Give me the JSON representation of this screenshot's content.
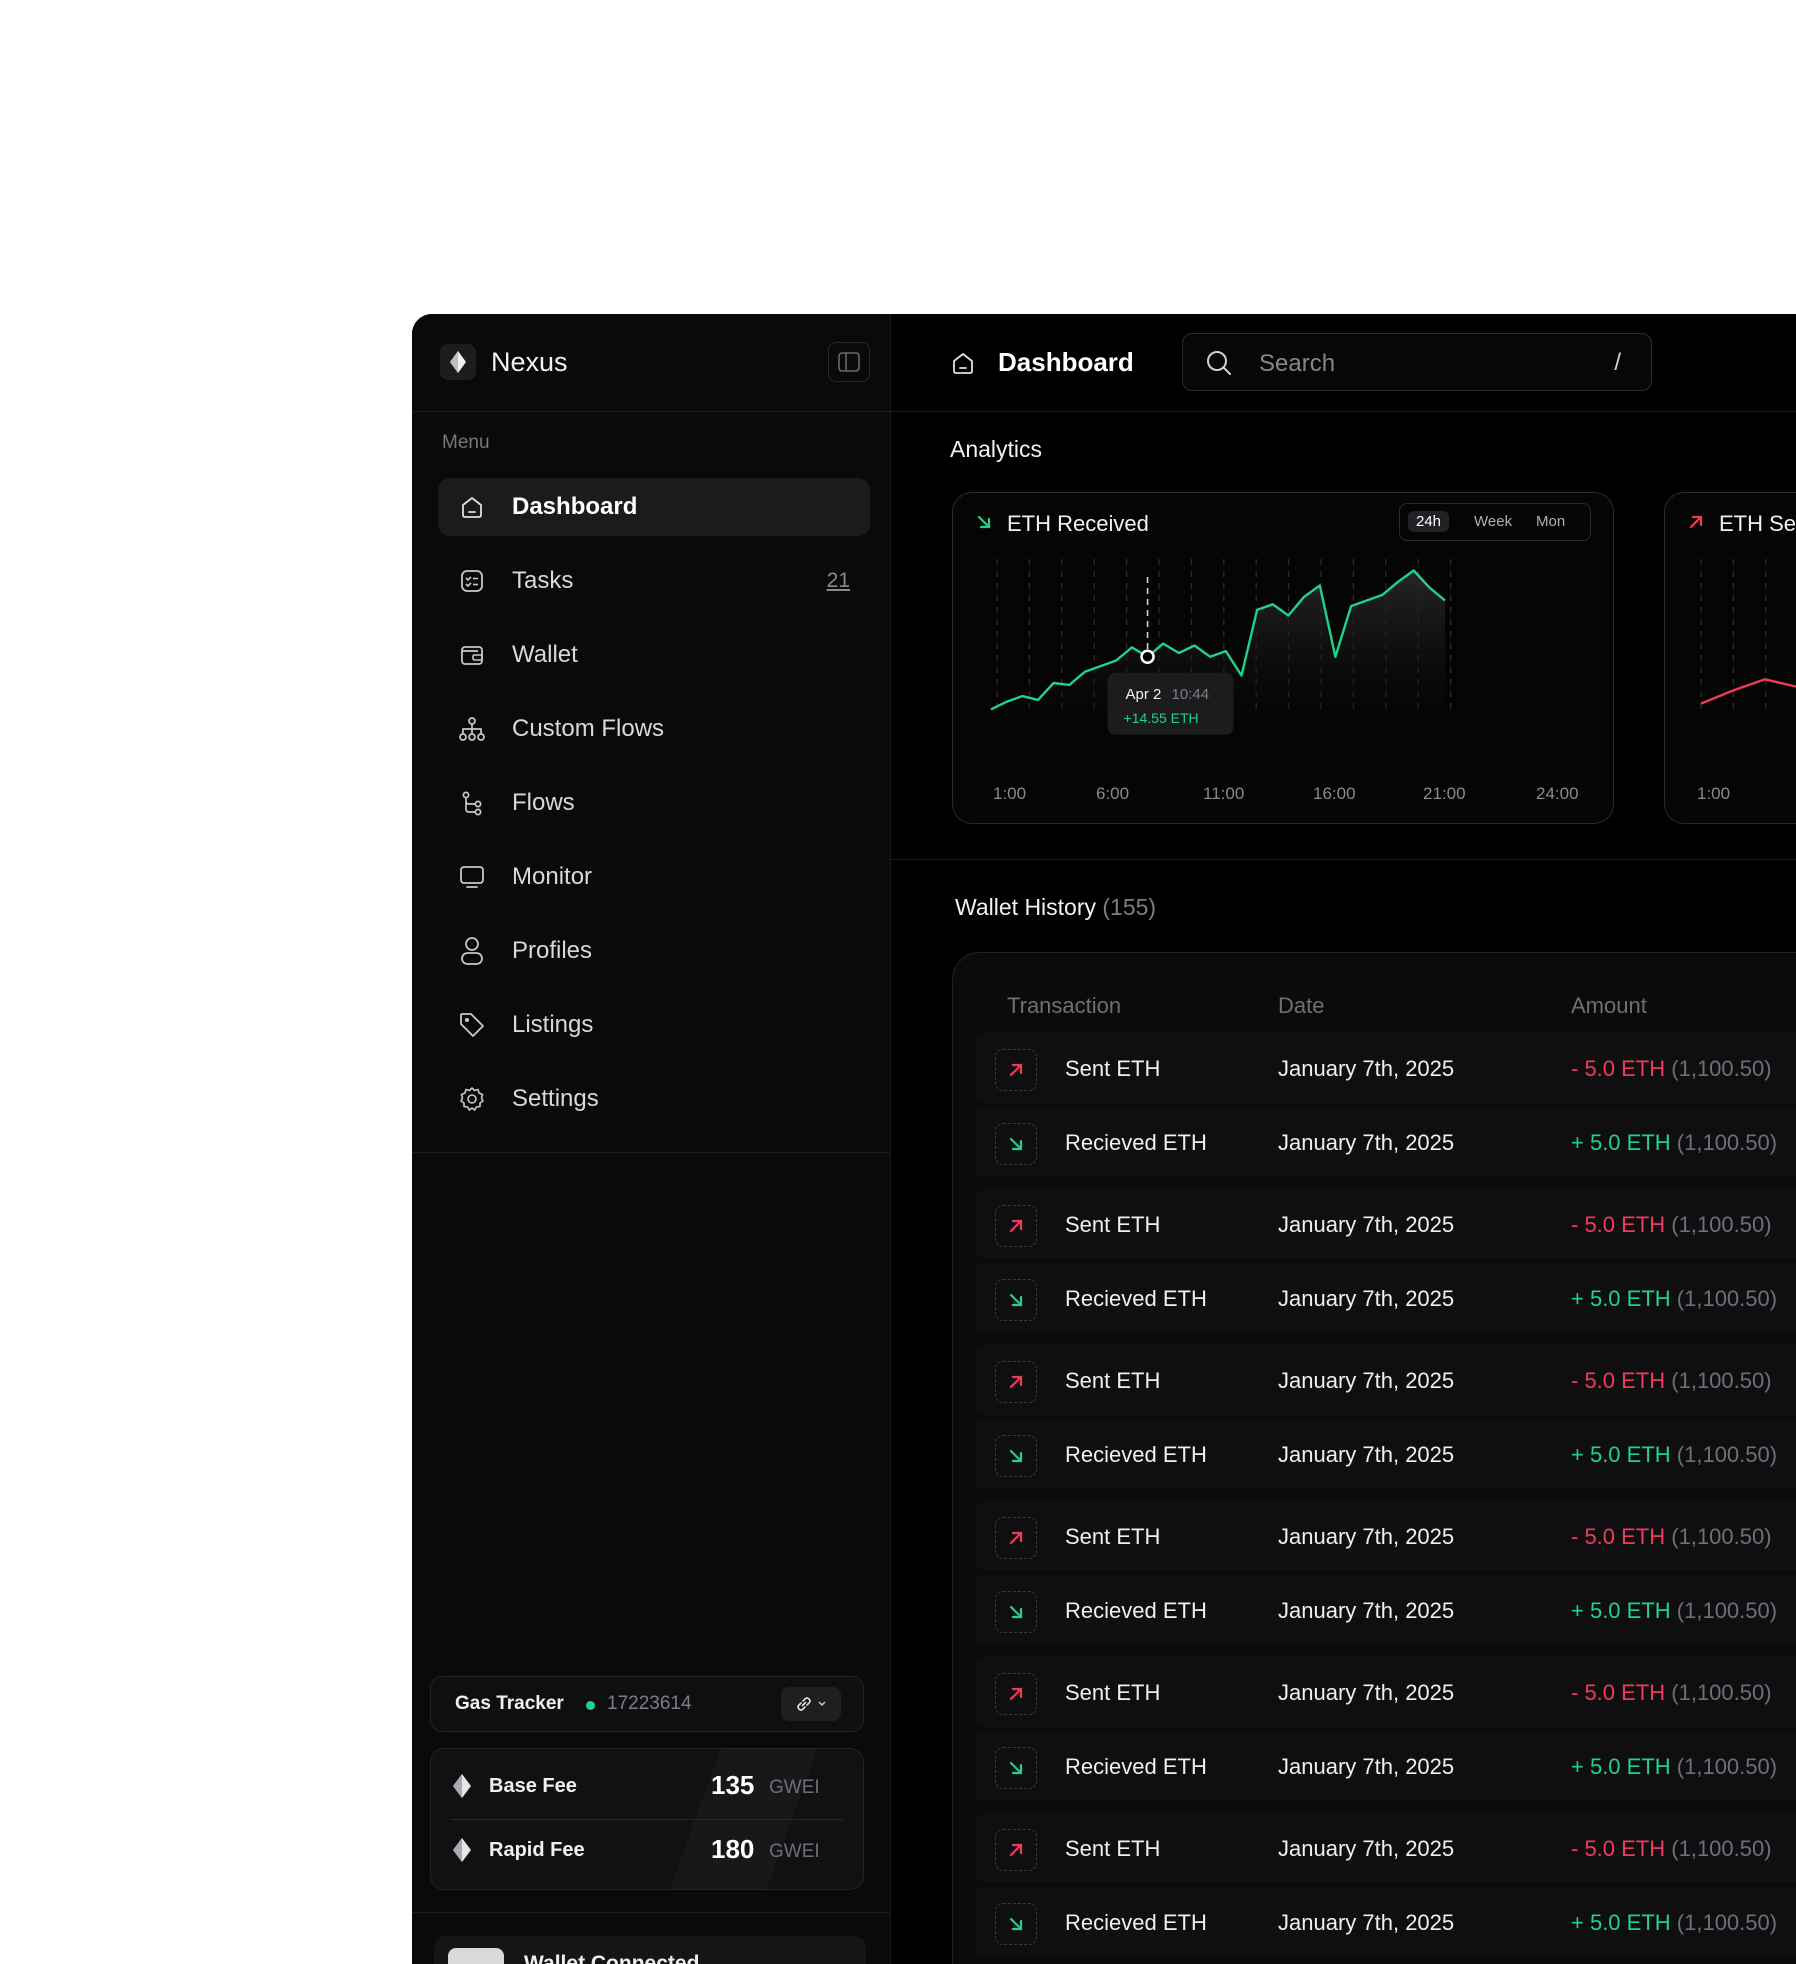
{
  "app": {
    "name": "Nexus"
  },
  "sidebar": {
    "menu_label": "Menu",
    "items": [
      {
        "label": "Dashboard",
        "icon": "home-icon",
        "active": true,
        "count": ""
      },
      {
        "label": "Tasks",
        "icon": "checklist-icon",
        "active": false,
        "count": "21"
      },
      {
        "label": "Wallet",
        "icon": "wallet-icon",
        "active": false,
        "count": ""
      },
      {
        "label": "Custom Flows",
        "icon": "hierarchy-icon",
        "active": false,
        "count": ""
      },
      {
        "label": "Flows",
        "icon": "branch-icon",
        "active": false,
        "count": ""
      },
      {
        "label": "Monitor",
        "icon": "monitor-icon",
        "active": false,
        "count": ""
      },
      {
        "label": "Profiles",
        "icon": "user-icon",
        "active": false,
        "count": ""
      },
      {
        "label": "Listings",
        "icon": "tag-icon",
        "active": false,
        "count": ""
      },
      {
        "label": "Settings",
        "icon": "gear-icon",
        "active": false,
        "count": ""
      }
    ],
    "gas_tracker": {
      "label": "Gas Tracker",
      "block": "17223614",
      "base_fee_label": "Base Fee",
      "base_fee_value": "135",
      "rapid_fee_label": "Rapid Fee",
      "rapid_fee_value": "180",
      "unit": "GWEI"
    },
    "wallet_connected": "Wallet Connected"
  },
  "header": {
    "title": "Dashboard",
    "search_placeholder": "Search",
    "search_shortcut": "/"
  },
  "analytics": {
    "title": "Analytics",
    "card1": {
      "title": "ETH Received",
      "ranges": [
        "24h",
        "Week",
        "Mon"
      ],
      "selected_range": "24h",
      "x_ticks": [
        "1:00",
        "6:00",
        "11:00",
        "16:00",
        "21:00",
        "24:00"
      ],
      "tooltip_date": "Apr 2",
      "tooltip_time": "10:44",
      "tooltip_value": "+14.55 ETH"
    },
    "card2": {
      "title": "ETH Sent",
      "x_ticks": [
        "1:00"
      ]
    }
  },
  "chart_data": [
    {
      "type": "line",
      "title": "ETH Received",
      "x_ticks": [
        "1:00",
        "6:00",
        "11:00",
        "16:00",
        "21:00",
        "24:00"
      ],
      "x": [
        1,
        2,
        3,
        4,
        5,
        6,
        7,
        8,
        9,
        10,
        11,
        12,
        13,
        14,
        15,
        16,
        17,
        18,
        19,
        20,
        21,
        22,
        23,
        24,
        25,
        26,
        27,
        28,
        29,
        30
      ],
      "values": [
        2,
        6,
        9,
        7,
        16,
        15,
        22,
        25,
        28,
        35,
        30,
        37,
        32,
        36,
        30,
        33,
        20,
        55,
        58,
        52,
        62,
        68,
        30,
        57,
        60,
        63,
        70,
        76,
        67,
        60
      ],
      "color": "#1fd38a",
      "highlight": {
        "label": "Apr 2 10:44",
        "value": "+14.55 ETH"
      }
    },
    {
      "type": "line",
      "title": "ETH Sent",
      "x_ticks": [
        "1:00"
      ],
      "x": [
        1,
        2,
        3,
        4
      ],
      "values": [
        5,
        12,
        18,
        14
      ],
      "color": "#ef3b5a"
    }
  ],
  "wallet_history": {
    "title": "Wallet History",
    "count": "(155)",
    "columns": [
      "Transaction",
      "Date",
      "Amount"
    ],
    "rows": [
      {
        "name": "Sent ETH",
        "type": "sent",
        "date": "January 7th, 2025",
        "amount": "- 5.0 ETH",
        "fiat": "(1,100.50)"
      },
      {
        "name": "Recieved ETH",
        "type": "received",
        "date": "January 7th, 2025",
        "amount": "+ 5.0 ETH",
        "fiat": "(1,100.50)"
      },
      {
        "name": "Sent ETH",
        "type": "sent",
        "date": "January 7th, 2025",
        "amount": "- 5.0 ETH",
        "fiat": "(1,100.50)"
      },
      {
        "name": "Recieved ETH",
        "type": "received",
        "date": "January 7th, 2025",
        "amount": "+ 5.0 ETH",
        "fiat": "(1,100.50)"
      },
      {
        "name": "Sent ETH",
        "type": "sent",
        "date": "January 7th, 2025",
        "amount": "- 5.0 ETH",
        "fiat": "(1,100.50)"
      },
      {
        "name": "Recieved ETH",
        "type": "received",
        "date": "January 7th, 2025",
        "amount": "+ 5.0 ETH",
        "fiat": "(1,100.50)"
      },
      {
        "name": "Sent ETH",
        "type": "sent",
        "date": "January 7th, 2025",
        "amount": "- 5.0 ETH",
        "fiat": "(1,100.50)"
      },
      {
        "name": "Recieved ETH",
        "type": "received",
        "date": "January 7th, 2025",
        "amount": "+ 5.0 ETH",
        "fiat": "(1,100.50)"
      },
      {
        "name": "Sent ETH",
        "type": "sent",
        "date": "January 7th, 2025",
        "amount": "- 5.0 ETH",
        "fiat": "(1,100.50)"
      },
      {
        "name": "Recieved ETH",
        "type": "received",
        "date": "January 7th, 2025",
        "amount": "+ 5.0 ETH",
        "fiat": "(1,100.50)"
      },
      {
        "name": "Sent ETH",
        "type": "sent",
        "date": "January 7th, 2025",
        "amount": "- 5.0 ETH",
        "fiat": "(1,100.50)"
      },
      {
        "name": "Recieved ETH",
        "type": "received",
        "date": "January 7th, 2025",
        "amount": "+ 5.0 ETH",
        "fiat": "(1,100.50)"
      }
    ]
  },
  "colors": {
    "accent_green": "#1fd38a",
    "accent_red": "#ef3b5a",
    "background": "#000000"
  }
}
